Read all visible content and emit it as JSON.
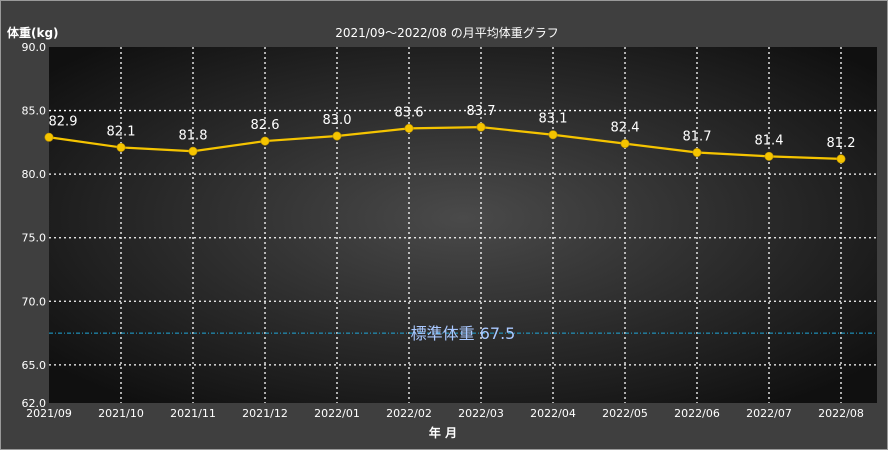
{
  "chart_data": {
    "type": "line",
    "title": "2021/09～2022/08 の月平均体重グラフ",
    "ylabel": "体重(kg)",
    "xlabel": "年 月",
    "categories": [
      "2021/09",
      "2021/10",
      "2021/11",
      "2021/12",
      "2022/01",
      "2022/02",
      "2022/03",
      "2022/04",
      "2022/05",
      "2022/06",
      "2022/07",
      "2022/08"
    ],
    "series": [
      {
        "values": [
          82.9,
          82.1,
          81.8,
          82.6,
          83.0,
          83.6,
          83.7,
          83.1,
          82.4,
          81.7,
          81.4,
          81.2
        ],
        "labels": [
          "82.9",
          "82.1",
          "81.8",
          "82.6",
          "83.0",
          "83.6",
          "83.7",
          "83.1",
          "82.4",
          "81.7",
          "81.4",
          "81.2"
        ]
      }
    ],
    "ylim": [
      62.0,
      90.0
    ],
    "yticks": [
      "62.0",
      "65.0",
      "70.0",
      "75.0",
      "80.0",
      "85.0",
      "90.0"
    ],
    "grid": true,
    "reference_line": {
      "label": "標準体重 67.5",
      "value": 67.5
    },
    "colors": {
      "line": "#f5c400",
      "point": "#f5c400",
      "grid": "#ffffff",
      "reference": "#1fa7d8",
      "reference_label": "#a9c8ff",
      "frame": "#3f3f3f"
    }
  }
}
